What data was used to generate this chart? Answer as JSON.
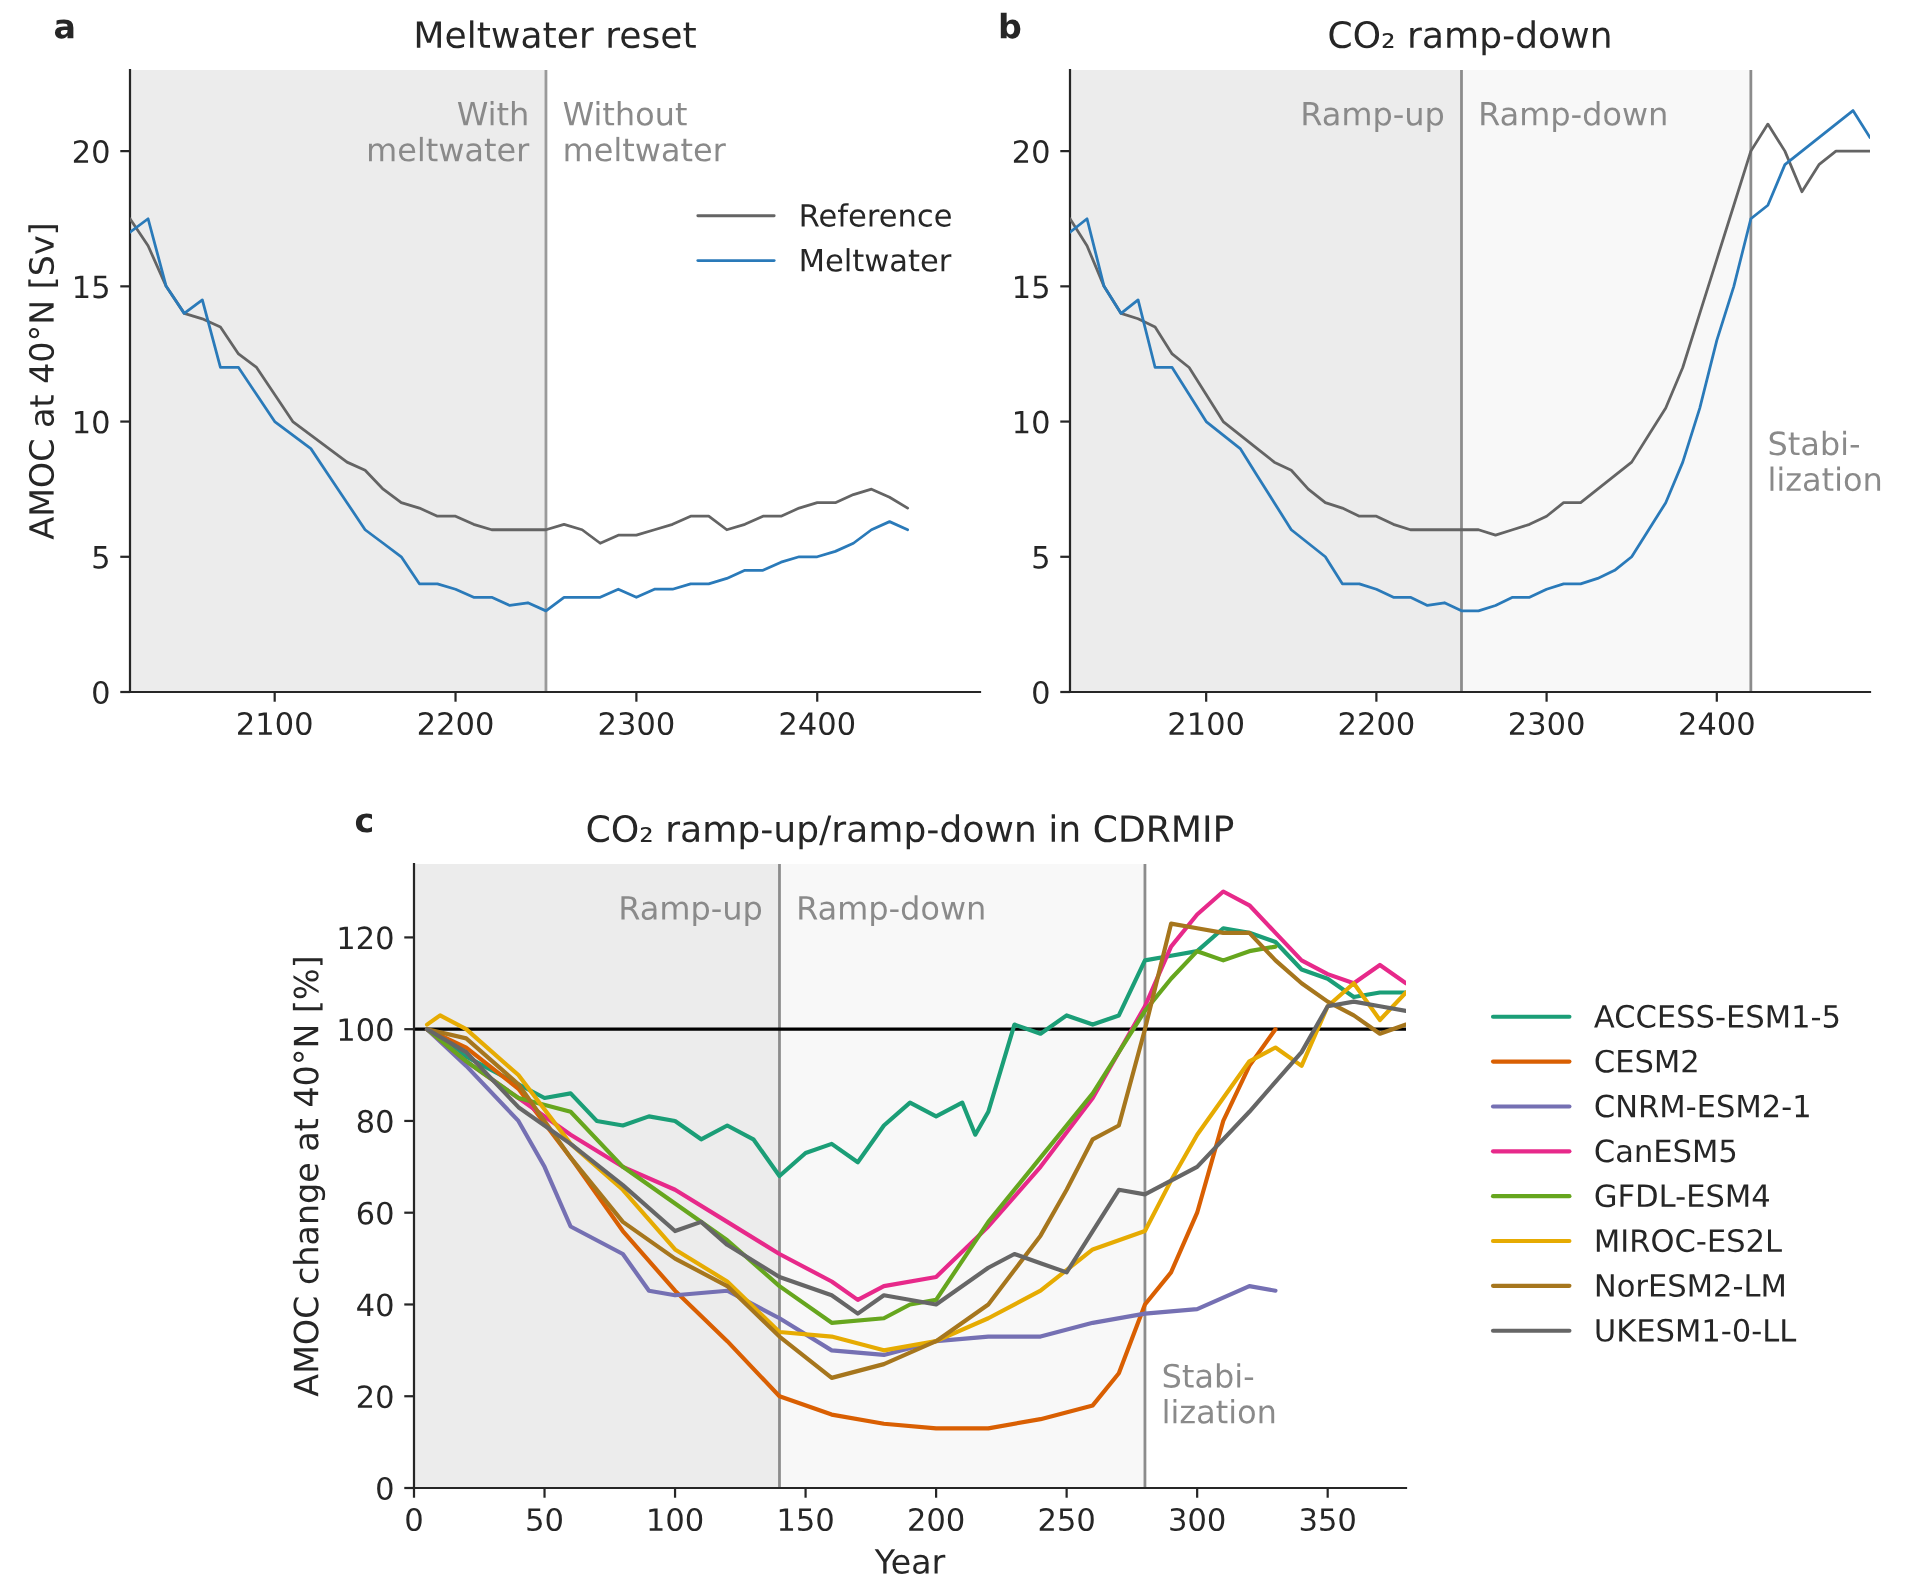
{
  "chart_data": [
    {
      "type": "line",
      "title": "Meltwater reset",
      "ylabel": "AMOC at 40°N [Sv]",
      "xlim": [
        2020,
        2490
      ],
      "ylim": [
        0,
        23
      ],
      "xticks": [
        2100,
        2200,
        2300,
        2400
      ],
      "yticks": [
        0,
        5,
        10,
        15,
        20
      ],
      "legend": "top right",
      "series": [
        {
          "name": "Reference",
          "color": "#646464",
          "x": [
            2020,
            2030,
            2040,
            2050,
            2060,
            2070,
            2080,
            2090,
            2100,
            2110,
            2120,
            2130,
            2140,
            2150,
            2160,
            2170,
            2180,
            2190,
            2200,
            2210,
            2220,
            2230,
            2240,
            2250,
            2260,
            2270,
            2280,
            2290,
            2300,
            2310,
            2320,
            2330,
            2340,
            2350,
            2360,
            2370,
            2380,
            2390,
            2400,
            2410,
            2420,
            2430,
            2440,
            2450
          ],
          "values": [
            17.5,
            16.5,
            15.0,
            14.0,
            13.8,
            13.5,
            12.5,
            12.0,
            11.0,
            10.0,
            9.5,
            9.0,
            8.5,
            8.2,
            7.5,
            7.0,
            6.8,
            6.5,
            6.5,
            6.2,
            6.0,
            6.0,
            6.0,
            6.0,
            6.2,
            6.0,
            5.5,
            5.8,
            5.8,
            6.0,
            6.2,
            6.5,
            6.5,
            6.0,
            6.2,
            6.5,
            6.5,
            6.8,
            7.0,
            7.0,
            7.3,
            7.5,
            7.2,
            6.8
          ]
        },
        {
          "name": "Meltwater",
          "color": "#2a7ab9",
          "x": [
            2020,
            2030,
            2040,
            2050,
            2060,
            2070,
            2080,
            2090,
            2100,
            2110,
            2120,
            2130,
            2140,
            2150,
            2160,
            2170,
            2180,
            2190,
            2200,
            2210,
            2220,
            2230,
            2240,
            2250,
            2260,
            2270,
            2280,
            2290,
            2300,
            2310,
            2320,
            2330,
            2340,
            2350,
            2360,
            2370,
            2380,
            2390,
            2400,
            2410,
            2420,
            2430,
            2440,
            2450
          ],
          "values": [
            17.0,
            17.5,
            15.0,
            14.0,
            14.5,
            12.0,
            12.0,
            11.0,
            10.0,
            9.5,
            9.0,
            8.0,
            7.0,
            6.0,
            5.5,
            5.0,
            4.0,
            4.0,
            3.8,
            3.5,
            3.5,
            3.2,
            3.3,
            3.0,
            3.5,
            3.5,
            3.5,
            3.8,
            3.5,
            3.8,
            3.8,
            4.0,
            4.0,
            4.2,
            4.5,
            4.5,
            4.8,
            5.0,
            5.0,
            5.2,
            5.5,
            6.0,
            6.3,
            6.0
          ]
        }
      ],
      "bands": [
        {
          "axis": "x",
          "from": 2020,
          "to": 2250,
          "color": "#ececec",
          "label": "With\nmeltwater"
        }
      ],
      "ref_lines": [
        {
          "axis": "x",
          "value": 2250,
          "color": "#9a9a9a",
          "label": "Without\nmeltwater"
        }
      ],
      "annotations": [
        "a"
      ]
    },
    {
      "type": "line",
      "title": "CO₂ ramp-down",
      "xlim": [
        2020,
        2490
      ],
      "ylim": [
        0,
        23
      ],
      "xticks": [
        2100,
        2200,
        2300,
        2400
      ],
      "yticks": [
        0,
        5,
        10,
        15,
        20
      ],
      "series": [
        {
          "color": "#646464",
          "x": [
            2020,
            2030,
            2040,
            2050,
            2060,
            2070,
            2080,
            2090,
            2100,
            2110,
            2120,
            2130,
            2140,
            2150,
            2160,
            2170,
            2180,
            2190,
            2200,
            2210,
            2220,
            2230,
            2240,
            2250,
            2260,
            2270,
            2280,
            2290,
            2300,
            2310,
            2320,
            2330,
            2340,
            2350,
            2360,
            2370,
            2380,
            2390,
            2400,
            2410,
            2420,
            2430,
            2440,
            2450,
            2460,
            2470,
            2480,
            2490
          ],
          "values": [
            17.5,
            16.5,
            15.0,
            14.0,
            13.8,
            13.5,
            12.5,
            12.0,
            11.0,
            10.0,
            9.5,
            9.0,
            8.5,
            8.2,
            7.5,
            7.0,
            6.8,
            6.5,
            6.5,
            6.2,
            6.0,
            6.0,
            6.0,
            6.0,
            6.0,
            5.8,
            6.0,
            6.2,
            6.5,
            7.0,
            7.0,
            7.5,
            8.0,
            8.5,
            9.5,
            10.5,
            12.0,
            14.0,
            16.0,
            18.0,
            20.0,
            21.0,
            20.0,
            18.5,
            19.5,
            20.0,
            20.0,
            20.0
          ]
        },
        {
          "color": "#2a7ab9",
          "x": [
            2020,
            2030,
            2040,
            2050,
            2060,
            2070,
            2080,
            2090,
            2100,
            2110,
            2120,
            2130,
            2140,
            2150,
            2160,
            2170,
            2180,
            2190,
            2200,
            2210,
            2220,
            2230,
            2240,
            2250,
            2260,
            2270,
            2280,
            2290,
            2300,
            2310,
            2320,
            2330,
            2340,
            2350,
            2360,
            2370,
            2380,
            2390,
            2400,
            2410,
            2420,
            2430,
            2440,
            2450,
            2460,
            2470,
            2480,
            2490
          ],
          "values": [
            17.0,
            17.5,
            15.0,
            14.0,
            14.5,
            12.0,
            12.0,
            11.0,
            10.0,
            9.5,
            9.0,
            8.0,
            7.0,
            6.0,
            5.5,
            5.0,
            4.0,
            4.0,
            3.8,
            3.5,
            3.5,
            3.2,
            3.3,
            3.0,
            3.0,
            3.2,
            3.5,
            3.5,
            3.8,
            4.0,
            4.0,
            4.2,
            4.5,
            5.0,
            6.0,
            7.0,
            8.5,
            10.5,
            13.0,
            15.0,
            17.5,
            18.0,
            19.5,
            20.0,
            20.5,
            21.0,
            21.5,
            20.5
          ]
        }
      ],
      "bands": [
        {
          "axis": "x",
          "from": 2020,
          "to": 2250,
          "color": "#ececec",
          "label": "Ramp-up"
        },
        {
          "axis": "x",
          "from": 2250,
          "to": 2420,
          "color": "#f8f8f8",
          "label": "Ramp-down"
        }
      ],
      "ref_lines": [
        {
          "axis": "x",
          "value": 2250,
          "color": "#8c8c8c"
        },
        {
          "axis": "x",
          "value": 2420,
          "color": "#8c8c8c",
          "label": "Stabi-\nlization"
        }
      ],
      "annotations": [
        "b"
      ]
    },
    {
      "type": "line",
      "title": "CO₂ ramp-up/ramp-down in CDRMIP",
      "xlabel": "Year",
      "ylabel": "AMOC change at 40°N [%]",
      "xlim": [
        0,
        380
      ],
      "ylim": [
        0,
        136
      ],
      "xticks": [
        0,
        50,
        100,
        150,
        200,
        250,
        300,
        350
      ],
      "yticks": [
        0,
        20,
        40,
        60,
        80,
        100,
        120
      ],
      "legend": "right",
      "series": [
        {
          "name": "ACCESS-ESM1-5",
          "color": "#1b9e77",
          "x": [
            5,
            20,
            40,
            50,
            60,
            70,
            80,
            90,
            100,
            110,
            120,
            130,
            140,
            150,
            160,
            170,
            180,
            190,
            200,
            210,
            215,
            220,
            230,
            240,
            250,
            260,
            270,
            280,
            290,
            300,
            310,
            320,
            330,
            340,
            350,
            360,
            370,
            380
          ],
          "values": [
            100,
            94,
            88,
            85,
            86,
            80,
            79,
            81,
            80,
            76,
            79,
            76,
            68,
            73,
            75,
            71,
            79,
            84,
            81,
            84,
            77,
            82,
            101,
            99,
            103,
            101,
            103,
            115,
            116,
            117,
            122,
            121,
            119,
            113,
            111,
            107,
            108,
            108
          ]
        },
        {
          "name": "CESM2",
          "color": "#d95f02",
          "x": [
            5,
            20,
            40,
            60,
            80,
            100,
            120,
            140,
            160,
            180,
            200,
            220,
            240,
            260,
            270,
            280,
            290,
            300,
            310,
            320,
            330
          ],
          "values": [
            100,
            96,
            87,
            72,
            56,
            43,
            32,
            20,
            16,
            14,
            13,
            13,
            15,
            18,
            25,
            40,
            47,
            60,
            80,
            92,
            100
          ]
        },
        {
          "name": "CNRM-ESM2-1",
          "color": "#7570b3",
          "x": [
            5,
            20,
            40,
            50,
            60,
            80,
            90,
            100,
            120,
            140,
            160,
            180,
            200,
            220,
            240,
            260,
            280,
            300,
            320,
            330
          ],
          "values": [
            100,
            92,
            80,
            70,
            57,
            51,
            43,
            42,
            43,
            37,
            30,
            29,
            32,
            33,
            33,
            36,
            38,
            39,
            44,
            43
          ]
        },
        {
          "name": "CanESM5",
          "color": "#e7298a",
          "x": [
            5,
            20,
            40,
            60,
            80,
            100,
            120,
            140,
            160,
            170,
            180,
            200,
            220,
            240,
            260,
            280,
            290,
            300,
            310,
            320,
            330,
            340,
            350,
            360,
            370,
            380
          ],
          "values": [
            100,
            93,
            85,
            77,
            70,
            65,
            58,
            51,
            45,
            41,
            44,
            46,
            57,
            70,
            85,
            105,
            118,
            125,
            130,
            127,
            121,
            115,
            112,
            110,
            114,
            110
          ]
        },
        {
          "name": "GFDL-ESM4",
          "color": "#66a61e",
          "x": [
            5,
            20,
            40,
            60,
            80,
            100,
            120,
            140,
            160,
            180,
            190,
            200,
            220,
            240,
            260,
            280,
            290,
            300,
            310,
            320,
            330
          ],
          "values": [
            100,
            93,
            85,
            82,
            70,
            62,
            54,
            44,
            36,
            37,
            40,
            41,
            58,
            72,
            86,
            104,
            111,
            117,
            115,
            117,
            118
          ]
        },
        {
          "name": "MIROC-ES2L",
          "color": "#e6ab02",
          "x": [
            5,
            10,
            20,
            40,
            60,
            80,
            100,
            120,
            140,
            160,
            180,
            200,
            220,
            240,
            260,
            280,
            290,
            300,
            310,
            320,
            330,
            340,
            350,
            360,
            370,
            380
          ],
          "values": [
            101,
            103,
            100,
            90,
            75,
            65,
            52,
            45,
            34,
            33,
            30,
            32,
            37,
            43,
            52,
            56,
            67,
            77,
            85,
            93,
            96,
            92,
            105,
            110,
            102,
            108
          ]
        },
        {
          "name": "NorESM2-LM",
          "color": "#a6761d",
          "x": [
            5,
            20,
            40,
            60,
            80,
            100,
            120,
            140,
            160,
            180,
            200,
            220,
            240,
            250,
            260,
            270,
            280,
            290,
            300,
            310,
            320,
            330,
            340,
            350,
            360,
            370,
            380
          ],
          "values": [
            100,
            98,
            88,
            72,
            58,
            50,
            44,
            33,
            24,
            27,
            32,
            40,
            55,
            65,
            76,
            79,
            100,
            123,
            122,
            121,
            121,
            115,
            110,
            106,
            103,
            99,
            101
          ]
        },
        {
          "name": "UKESM1-0-LL",
          "color": "#666666",
          "x": [
            5,
            20,
            40,
            60,
            80,
            100,
            110,
            120,
            140,
            160,
            170,
            180,
            200,
            220,
            230,
            240,
            250,
            260,
            270,
            280,
            300,
            320,
            340,
            350,
            360,
            370,
            380
          ],
          "values": [
            100,
            95,
            83,
            75,
            66,
            56,
            58,
            53,
            46,
            42,
            38,
            42,
            40,
            48,
            51,
            49,
            47,
            56,
            65,
            64,
            70,
            82,
            95,
            105,
            106,
            105,
            104
          ]
        }
      ],
      "bands": [
        {
          "axis": "x",
          "from": 0,
          "to": 140,
          "color": "#ececec",
          "label": "Ramp-up"
        },
        {
          "axis": "x",
          "from": 140,
          "to": 280,
          "color": "#f8f8f8",
          "label": "Ramp-down"
        }
      ],
      "ref_lines": [
        {
          "axis": "x",
          "value": 140,
          "color": "#8c8c8c"
        },
        {
          "axis": "x",
          "value": 280,
          "color": "#8c8c8c",
          "label": "Stabi-\nlization"
        },
        {
          "axis": "y",
          "value": 100,
          "color": "#000000"
        }
      ],
      "annotations": [
        "c"
      ]
    }
  ]
}
